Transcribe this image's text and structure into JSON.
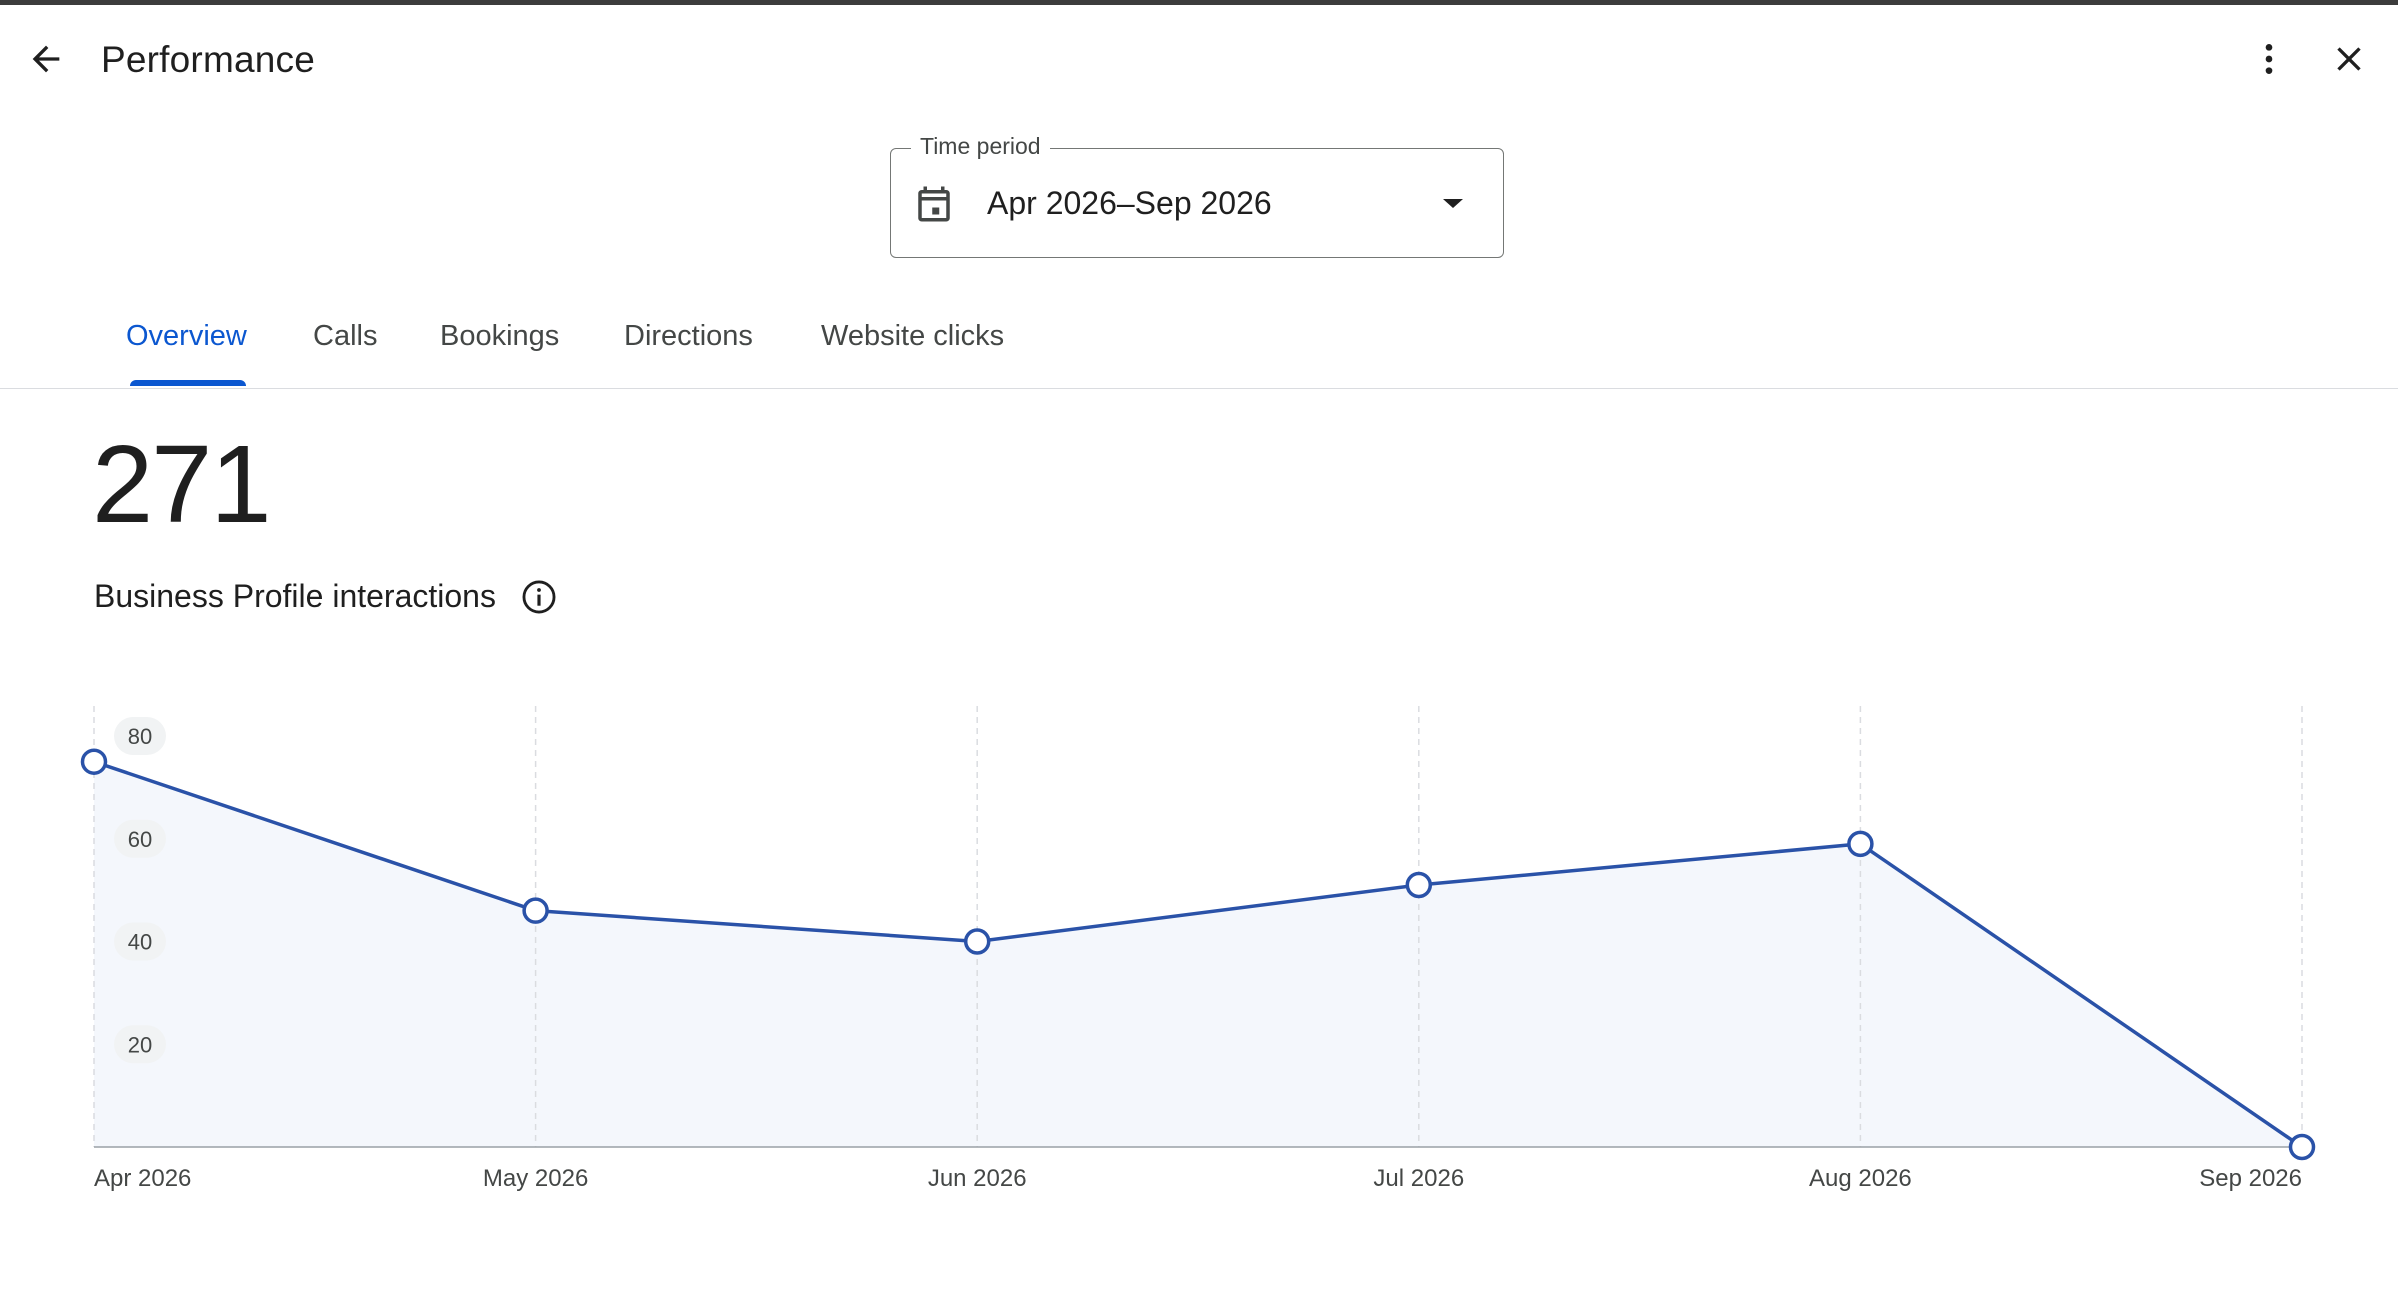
{
  "header": {
    "title": "Performance",
    "back_icon": "arrow-back-icon",
    "more_icon": "more-vert-icon",
    "close_icon": "close-icon"
  },
  "time_period": {
    "label": "Time period",
    "value": "Apr 2026–Sep 2026",
    "icon": "calendar-icon"
  },
  "tabs": [
    {
      "label": "Overview",
      "active": true
    },
    {
      "label": "Calls",
      "active": false
    },
    {
      "label": "Bookings",
      "active": false
    },
    {
      "label": "Directions",
      "active": false
    },
    {
      "label": "Website clicks",
      "active": false
    }
  ],
  "metric": {
    "value": "271",
    "label": "Business Profile interactions"
  },
  "colors": {
    "accent": "#0b57d0",
    "line": "#2a52a8",
    "area": "#f4f7fc"
  },
  "chart_data": {
    "type": "area",
    "categories": [
      "Apr 2026",
      "May 2026",
      "Jun 2026",
      "Jul 2026",
      "Aug 2026",
      "Sep 2026"
    ],
    "values": [
      75,
      46,
      40,
      51,
      59,
      0
    ],
    "yticks": [
      20,
      40,
      60,
      80
    ],
    "ylim": [
      0,
      80
    ],
    "grid": "vertical-dashed",
    "legend": "none"
  }
}
